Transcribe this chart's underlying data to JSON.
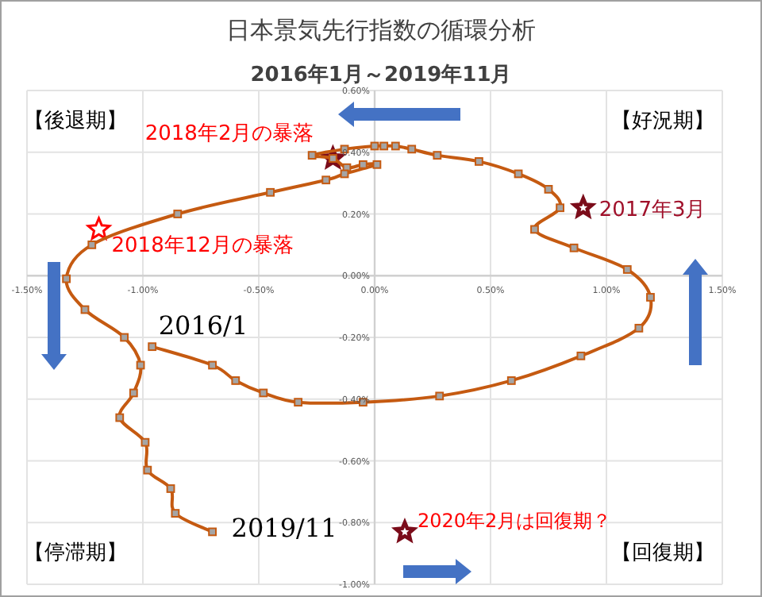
{
  "chart_data": {
    "type": "line",
    "title": "日本景気先行指数の循環分析",
    "subtitle": "2016年1月～2019年11月",
    "series": [
      {
        "color": "#c55a11",
        "x": [
          -0.96,
          -0.7,
          -0.6,
          -0.48,
          -0.33,
          -0.05,
          0.28,
          0.59,
          0.89,
          1.14,
          1.19,
          1.09,
          0.86,
          0.69,
          0.8,
          0.75,
          0.62,
          0.45,
          0.27,
          0.16,
          0.09,
          0.04,
          0.0,
          -0.13,
          -0.27,
          -0.18,
          -0.12,
          -0.05,
          0.01,
          -0.13,
          -0.21,
          -0.45,
          -0.85,
          -1.22,
          -1.33,
          -1.25,
          -1.08,
          -1.01,
          -1.04,
          -1.1,
          -0.99,
          -0.98,
          -0.88,
          -0.86,
          -0.7
        ],
        "values": [
          -0.23,
          -0.29,
          -0.34,
          -0.38,
          -0.41,
          -0.41,
          -0.39,
          -0.34,
          -0.26,
          -0.17,
          -0.07,
          0.02,
          0.09,
          0.15,
          0.22,
          0.28,
          0.33,
          0.37,
          0.39,
          0.41,
          0.42,
          0.42,
          0.42,
          0.41,
          0.39,
          0.38,
          0.35,
          0.36,
          0.36,
          0.33,
          0.31,
          0.27,
          0.2,
          0.1,
          -0.01,
          -0.11,
          -0.2,
          -0.29,
          -0.38,
          -0.46,
          -0.54,
          -0.63,
          -0.69,
          -0.77,
          -0.83
        ]
      }
    ],
    "xlim": [
      -1.5,
      1.5
    ],
    "ylim": [
      -1.0,
      0.6
    ],
    "xticks": [
      {
        "value": -1.5,
        "label": "-1.50%"
      },
      {
        "value": -1.0,
        "label": "-1.00%"
      },
      {
        "value": -0.5,
        "label": "-0.50%"
      },
      {
        "value": 0,
        "label": "0.00%"
      },
      {
        "value": 0.5,
        "label": "0.50%"
      },
      {
        "value": 1.0,
        "label": "1.00%"
      },
      {
        "value": 1.5,
        "label": "1.50%"
      }
    ],
    "yticks": [
      {
        "value": -1.0,
        "label": "-1.00%"
      },
      {
        "value": -0.8,
        "label": "-0.80%"
      },
      {
        "value": -0.6,
        "label": "-0.60%"
      },
      {
        "value": -0.4,
        "label": "-0.40%"
      },
      {
        "value": -0.2,
        "label": "-0.20%"
      },
      {
        "value": 0,
        "label": "0.00%"
      },
      {
        "value": 0.2,
        "label": "0.20%"
      },
      {
        "value": 0.4,
        "label": "0.40%"
      },
      {
        "value": 0.6,
        "label": "0.60%"
      }
    ],
    "grid": true,
    "marker": "square",
    "annotations": [
      {
        "text": "2018年2月の暴落",
        "x": -0.18,
        "y": 0.38
      },
      {
        "text": "2017年3月",
        "x": 0.9,
        "y": 0.22
      },
      {
        "text": "2018年12月の暴落",
        "x": -1.19,
        "y": 0.15
      },
      {
        "text": "2020年2月は回復期？",
        "x": 0.13,
        "y": -0.83
      },
      {
        "text": "2016/1",
        "x": -0.96,
        "y": -0.23
      },
      {
        "text": "2019/11",
        "x": -0.7,
        "y": -0.83
      },
      "【後退期】",
      "【好況期】",
      "【停滞期】",
      "【回復期】"
    ]
  }
}
